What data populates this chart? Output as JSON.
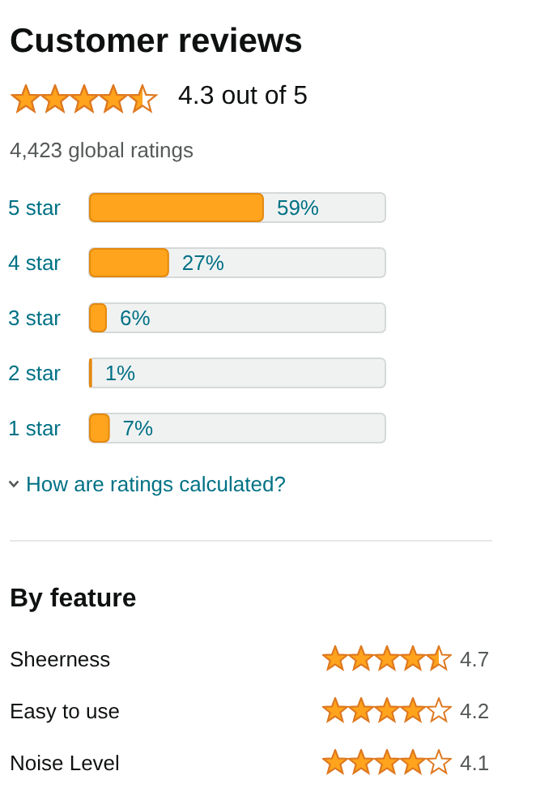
{
  "chart_data": [
    {
      "type": "bar",
      "title": "Customer reviews",
      "subtitle": "4,423 global ratings",
      "annotations": [
        "4.3 out of 5",
        "How are ratings calculated?"
      ],
      "orientation": "horizontal",
      "categories": [
        "5 star",
        "4 star",
        "3 star",
        "2 star",
        "1 star"
      ],
      "values": [
        59,
        27,
        6,
        1,
        7
      ],
      "value_labels": [
        "59%",
        "27%",
        "6%",
        "1%",
        "7%"
      ],
      "color": "#ffa41c",
      "xlim": [
        0,
        100
      ],
      "tick_labels": "y"
    },
    {
      "type": "other",
      "title": "By feature",
      "categories": [
        "Sheerness",
        "Easy to use",
        "Noise Level"
      ],
      "values": [
        4.7,
        4.2,
        4.1
      ],
      "data_labels": true
    }
  ]
}
